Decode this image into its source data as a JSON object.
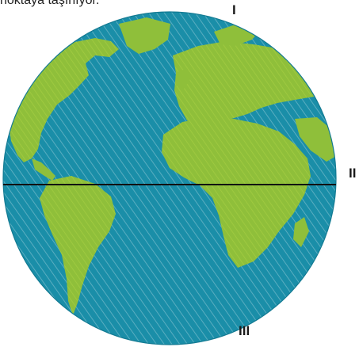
{
  "caption": {
    "text": "noktaya taşınıyor."
  },
  "markers": {
    "north": "I",
    "east": "II",
    "south": "III"
  },
  "globe": {
    "ocean_color": "#1a8ea8",
    "land_color": "#8fbf3a",
    "equator_color": "#111111"
  }
}
